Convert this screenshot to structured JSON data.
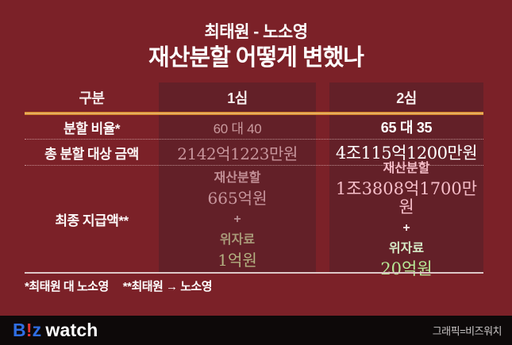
{
  "title": {
    "line1": "최태원 - 노소영",
    "line2": "재산분할 어떻게 변했나"
  },
  "table": {
    "header": {
      "col1": "구분",
      "col2": "1심",
      "col3": "2심"
    },
    "ratio_row": {
      "label": "분할 비율*",
      "trial1": "60 대 40",
      "trial2": "65 대 35"
    },
    "total_row": {
      "label": "총 분할 대상 금액",
      "trial1": "2142억1223만원",
      "trial2": "4조115억1200만원"
    },
    "final_row": {
      "label": "최종 지급액**",
      "trial1": {
        "division_label": "재산분할",
        "division_value": "665억원",
        "plus": "+",
        "alimony_label": "위자료",
        "alimony_value": "1억원"
      },
      "trial2": {
        "division_label": "재산분할",
        "division_value": "1조3808억1700만원",
        "plus": "+",
        "alimony_label": "위자료",
        "alimony_value": "20억원"
      }
    }
  },
  "footnotes": {
    "note1": "*최태원 대 노소영",
    "note2": "**최태원 → 노소영"
  },
  "footer": {
    "logo_b": "B",
    "logo_excl": "!",
    "logo_z": "z",
    "logo_watch": "watch",
    "credit": "그래픽=비즈워치"
  },
  "colors": {
    "page_background": "#7b2128",
    "column_background": "#632028",
    "accent_line_orange": "#d8872b",
    "trial1_muted_pink": "#c7959c",
    "trial1_muted_green": "#b3b181",
    "trial2_pink": "#f6bec9",
    "trial2_green": "#b7e795",
    "footer_bar": "#0d0909",
    "logo_blue": "#2f6ee3",
    "logo_red": "#e23333"
  },
  "chart_data": {
    "type": "table",
    "title": "최태원 - 노소영 재산분할 어떻게 변했나",
    "columns": [
      "구분",
      "1심",
      "2심"
    ],
    "rows": [
      [
        "분할 비율*",
        "60 대 40",
        "65 대 35"
      ],
      [
        "총 분할 대상 금액",
        "2142억1223만원",
        "4조115억1200만원"
      ],
      [
        "최종 지급액**",
        "재산분할 665억원 + 위자료 1억원",
        "재산분할 1조3808억1700만원 + 위자료 20억원"
      ]
    ],
    "footnotes": [
      "*최태원 대 노소영",
      "**최태원 → 노소영"
    ],
    "source": "그래픽=비즈워치"
  }
}
